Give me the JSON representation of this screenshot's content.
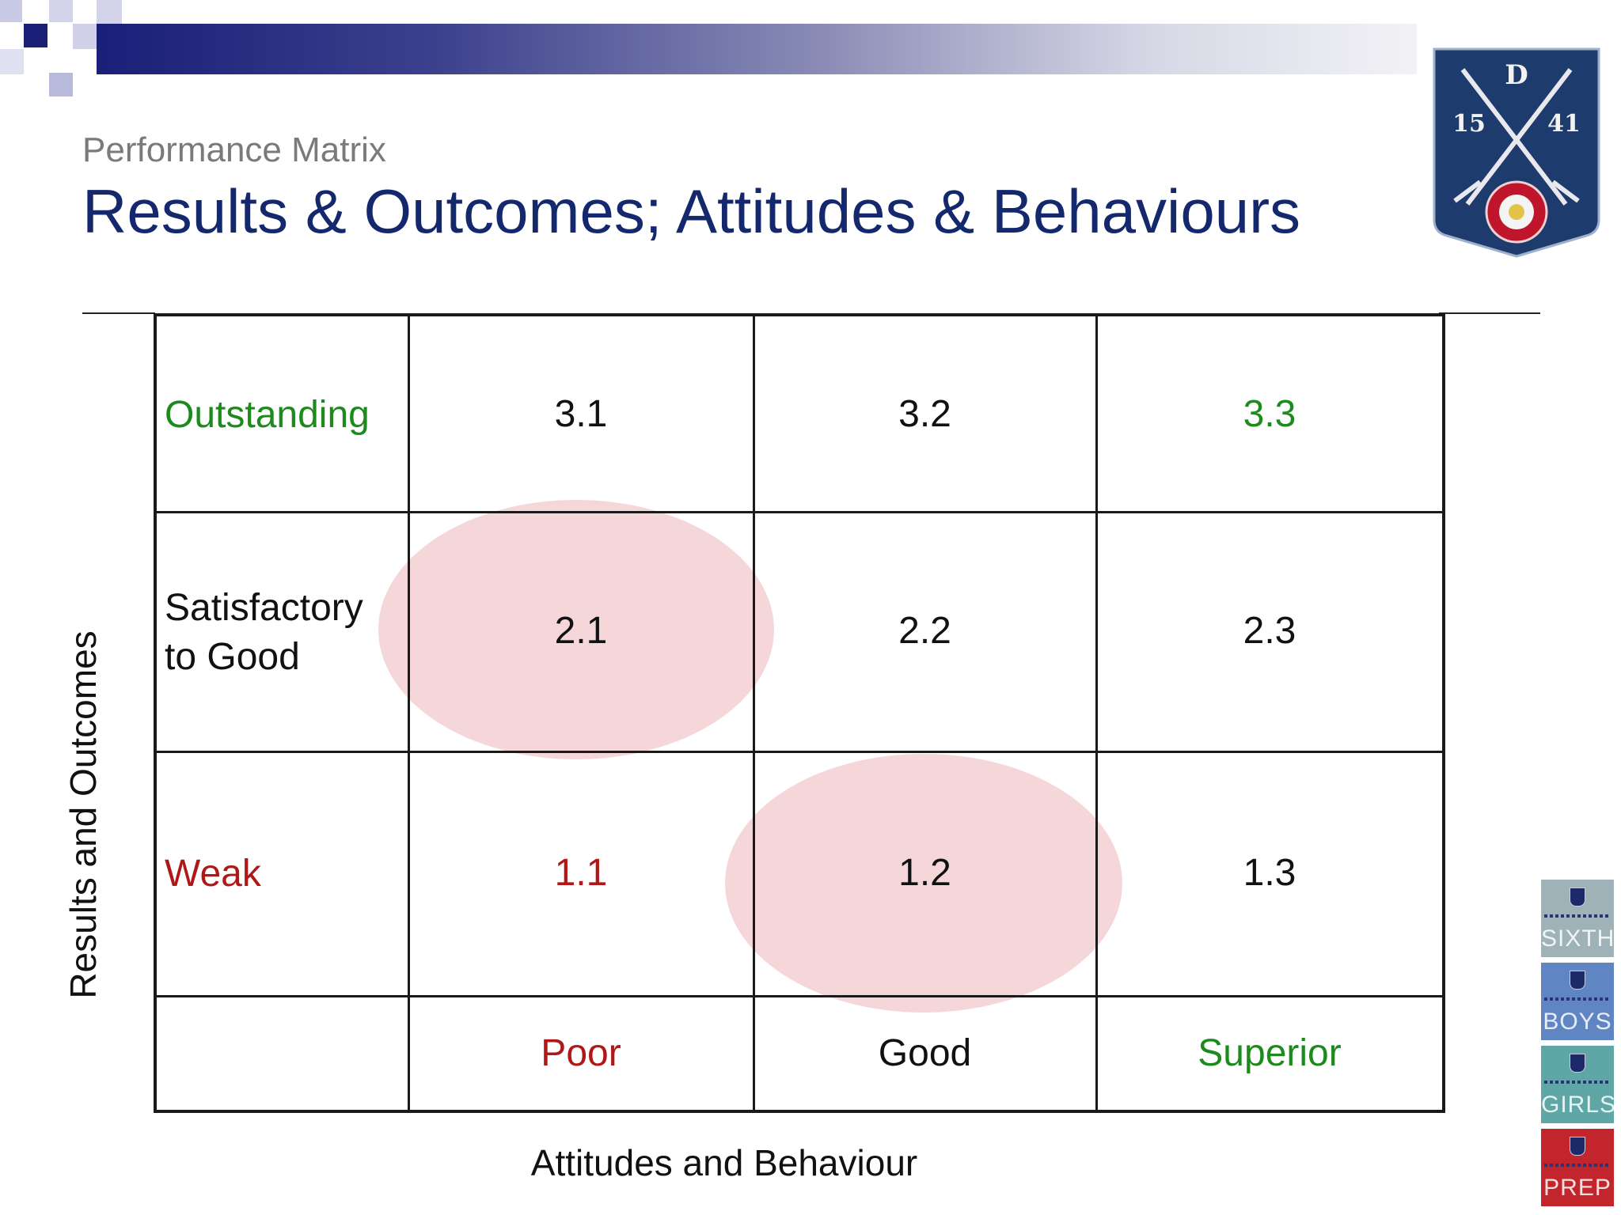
{
  "header": {
    "subtitle": "Performance Matrix",
    "title": "Results & Outcomes; Attitudes & Behaviours"
  },
  "crest": {
    "letter": "D",
    "left_number": "15",
    "right_number": "41",
    "colors": {
      "shield": "#1e3b6e",
      "rose": "#c0162b"
    }
  },
  "matrix": {
    "rows": [
      {
        "label": "Outstanding",
        "label_color": "#1e8a1e",
        "cells": [
          {
            "value": "3.1",
            "color": "#111111"
          },
          {
            "value": "3.2",
            "color": "#111111"
          },
          {
            "value": "3.3",
            "color": "#1e8a1e"
          }
        ]
      },
      {
        "label": "Satisfactory to Good",
        "label_line1": "Satisfactory",
        "label_line2": "to Good",
        "label_color": "#111111",
        "cells": [
          {
            "value": "2.1",
            "color": "#111111"
          },
          {
            "value": "2.2",
            "color": "#111111"
          },
          {
            "value": "2.3",
            "color": "#111111"
          }
        ]
      },
      {
        "label": "Weak",
        "label_color": "#b01818",
        "cells": [
          {
            "value": "1.1",
            "color": "#b01818"
          },
          {
            "value": "1.2",
            "color": "#111111"
          },
          {
            "value": "1.3",
            "color": "#111111"
          }
        ]
      }
    ],
    "columns": [
      {
        "label": "Poor",
        "color": "#b01818"
      },
      {
        "label": "Good",
        "color": "#111111"
      },
      {
        "label": "Superior",
        "color": "#1e8a1e"
      }
    ],
    "highlighted_cells": [
      "2.1",
      "1.2"
    ],
    "highlight_color": "#e8a6ac",
    "y_axis_label": "Results and Outcomes",
    "x_axis_label": "Attitudes and Behaviour"
  },
  "side_badges": [
    {
      "label": "SIXTH",
      "color": "#9fb2b8"
    },
    {
      "label": "BOYS",
      "color": "#5f86c2"
    },
    {
      "label": "GIRLS",
      "color": "#5fa6a6"
    },
    {
      "label": "PREP",
      "color": "#c2262c"
    }
  ]
}
